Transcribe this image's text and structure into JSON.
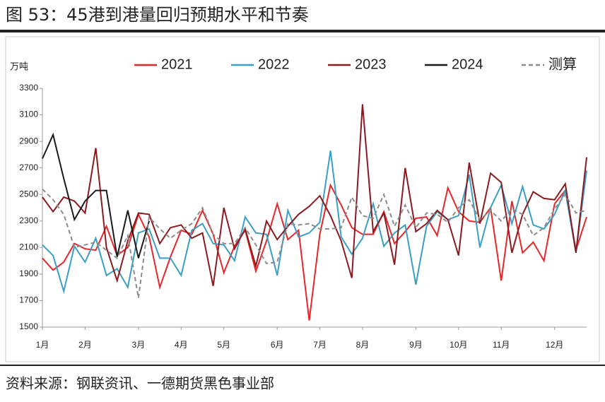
{
  "chart_data": {
    "type": "line",
    "title": "图 53：45港到港量回归预期水平和节奏",
    "y_label": "万吨",
    "source": "资料来源：钢联资讯、一德期货黑色事业部",
    "categories": [
      "1月",
      null,
      null,
      null,
      "2月",
      null,
      null,
      null,
      null,
      "3月",
      null,
      null,
      null,
      "4月",
      null,
      null,
      null,
      "5月",
      null,
      null,
      null,
      null,
      "6月",
      null,
      null,
      null,
      "7月",
      null,
      null,
      null,
      "8月",
      null,
      null,
      null,
      null,
      "9月",
      null,
      null,
      null,
      "10月",
      null,
      null,
      null,
      "11月",
      null,
      null,
      null,
      null,
      "12月",
      null,
      null,
      null
    ],
    "ylim": [
      1500,
      3300
    ],
    "yticks": [
      1500,
      1700,
      1900,
      2100,
      2300,
      2500,
      2700,
      2900,
      3100,
      3300
    ],
    "grid": false,
    "legend": "top",
    "series": [
      {
        "name": "2021",
        "color": "#e8262a",
        "dash": false,
        "values": [
          2020,
          1930,
          1990,
          2130,
          2090,
          2080,
          2260,
          2040,
          2100,
          2350,
          2180,
          1800,
          2030,
          2230,
          2200,
          2380,
          2200,
          1910,
          2110,
          2230,
          1920,
          2150,
          2430,
          2160,
          2230,
          1550,
          2200,
          2570,
          2420,
          2250,
          2200,
          2200,
          2370,
          2130,
          2220,
          2320,
          2330,
          2190,
          2550,
          2370,
          2300,
          2290,
          2400,
          1850,
          2450,
          2060,
          2140,
          2000,
          2430,
          2530,
          2080,
          2330
        ]
      },
      {
        "name": "2022",
        "color": "#3a9fc4",
        "dash": false,
        "values": [
          2120,
          2040,
          1770,
          2110,
          1990,
          2170,
          1890,
          1940,
          1800,
          2210,
          2240,
          2020,
          2020,
          1890,
          2230,
          2280,
          2130,
          2120,
          2000,
          2330,
          2210,
          2200,
          1890,
          2380,
          2180,
          2210,
          2290,
          2830,
          2180,
          2050,
          2170,
          2430,
          2110,
          2210,
          2270,
          1820,
          2260,
          2370,
          2310,
          2340,
          2650,
          2100,
          2400,
          2570,
          2280,
          2560,
          2270,
          2240,
          2350,
          2530,
          2060,
          2680
        ]
      },
      {
        "name": "2023",
        "color": "#8b1a1f",
        "dash": false,
        "values": [
          2480,
          2370,
          2480,
          2450,
          2360,
          2850,
          2100,
          1850,
          2150,
          2360,
          2350,
          2130,
          2250,
          2270,
          2170,
          2210,
          1810,
          2400,
          2090,
          2240,
          1960,
          2300,
          2160,
          2260,
          2350,
          2410,
          2490,
          2340,
          2150,
          1870,
          3180,
          2220,
          2360,
          1970,
          2700,
          2220,
          2280,
          2380,
          2310,
          2040,
          2740,
          2280,
          2660,
          2590,
          2060,
          2350,
          2520,
          2470,
          2460,
          2580,
          2060,
          2780
        ]
      },
      {
        "name": "2024",
        "color": "#1a1a1a",
        "dash": false,
        "values": [
          2770,
          2950,
          2620,
          2310,
          2450,
          2530,
          2530,
          2030,
          2380,
          2020,
          2300,
          null,
          null,
          null,
          null,
          null,
          null,
          null,
          null,
          null,
          null,
          null,
          null,
          null,
          null,
          null,
          null,
          null,
          null,
          null,
          null,
          null,
          null,
          null,
          null,
          null,
          null,
          null,
          null,
          null,
          null,
          null,
          null,
          null,
          null,
          null,
          null,
          null,
          null,
          null,
          null,
          null
        ]
      },
      {
        "name": "测算",
        "color": "#8c8c8c",
        "dash": true,
        "values": [
          2540,
          2460,
          2350,
          2100,
          2120,
          2140,
          2080,
          2020,
          2190,
          1720,
          2330,
          2240,
          2170,
          2230,
          2280,
          2400,
          2200,
          2130,
          2130,
          2250,
          2120,
          1980,
          1990,
          2280,
          2270,
          2280,
          2240,
          2240,
          2250,
          2480,
          2340,
          2320,
          2500,
          2260,
          2420,
          2250,
          2360,
          2350,
          2290,
          2400,
          2460,
          2310,
          2380,
          2300,
          2390,
          2350,
          2190,
          2250,
          2390,
          2500,
          2360,
          2380
        ]
      }
    ]
  }
}
